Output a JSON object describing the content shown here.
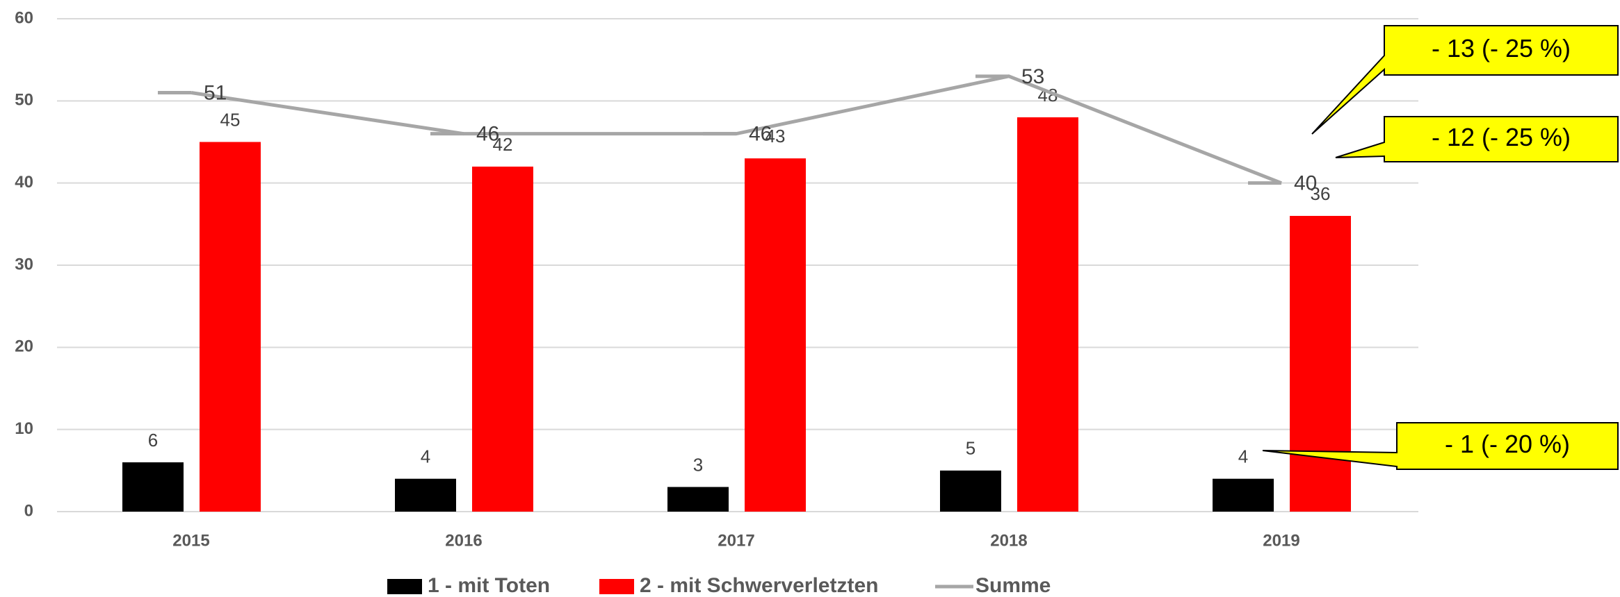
{
  "chart_data": {
    "type": "bar-line",
    "categories": [
      "2015",
      "2016",
      "2017",
      "2018",
      "2019"
    ],
    "series": [
      {
        "name": "1 - mit Toten",
        "color": "#000000",
        "type": "bar",
        "values": [
          6,
          4,
          3,
          5,
          4
        ]
      },
      {
        "name": "2 - mit Schwerverletzten",
        "color": "#ff0000",
        "type": "bar",
        "values": [
          45,
          42,
          43,
          48,
          36
        ]
      },
      {
        "name": "Summe",
        "color": "#a6a6a6",
        "type": "line",
        "values": [
          51,
          46,
          46,
          53,
          40
        ]
      }
    ],
    "ylim": [
      0,
      60
    ],
    "yticks": [
      0,
      10,
      20,
      30,
      40,
      50,
      60
    ],
    "grid": true,
    "legend": "bottom",
    "annotations": [
      {
        "text": "- 13 (- 25 %)",
        "color": "#ffff00"
      },
      {
        "text": "- 12 (- 25 %)",
        "color": "#ffff00"
      },
      {
        "text": "- 1 (- 20 %)",
        "color": "#ffff00"
      }
    ]
  }
}
